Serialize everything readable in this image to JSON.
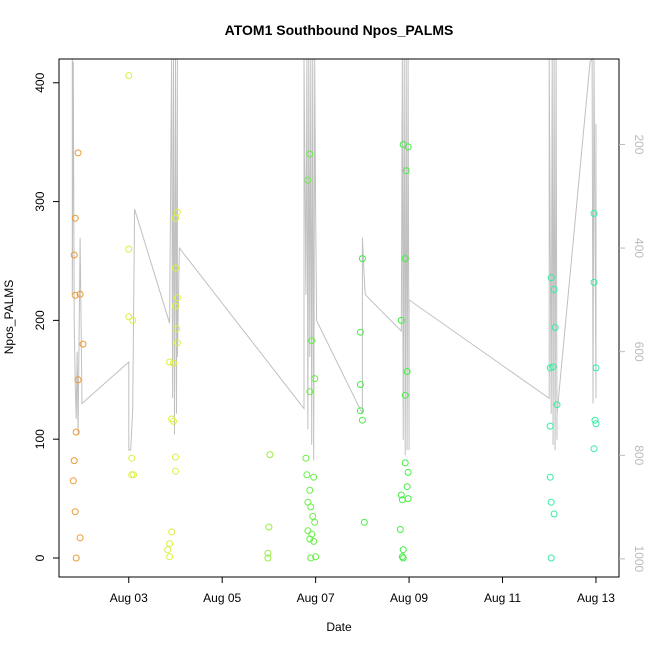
{
  "chart_data": {
    "type": "scatter",
    "title": "ATOM1 Southbound Npos_PALMS",
    "xlabel": "Date",
    "ylabel": "Npos_PALMS",
    "x_ticks": [
      "Aug 03",
      "Aug 05",
      "Aug 07",
      "Aug 09",
      "Aug 11",
      "Aug 13"
    ],
    "x_tick_dates": [
      "2023-08-03",
      "2023-08-05",
      "2023-08-07",
      "2023-08-09",
      "2023-08-11",
      "2023-08-13"
    ],
    "xlim": [
      "2023-08-01 12:10",
      "2023-08-13 11:50"
    ],
    "y_ticks": [
      0,
      100,
      200,
      300,
      400
    ],
    "ylim": [
      -16,
      420
    ],
    "y2_ticks": [
      200,
      400,
      600,
      800,
      1000
    ],
    "y2lim": [
      1035,
      35
    ],
    "y2_reversed": true,
    "grid": false,
    "legend": "none",
    "colors": {
      "axis": "#000000",
      "secondary_axis": "#bbbbbb",
      "track_line": "#c0c0c0"
    },
    "series": [
      {
        "color": "#ee9933",
        "points": [
          {
            "x": "2023-08-01 22:00",
            "y": 341
          },
          {
            "x": "2023-08-01 20:30",
            "y": 286
          },
          {
            "x": "2023-08-01 20:00",
            "y": 255
          },
          {
            "x": "2023-08-01 20:30",
            "y": 221
          },
          {
            "x": "2023-08-01 23:00",
            "y": 222
          },
          {
            "x": "2023-08-02 00:30",
            "y": 180
          },
          {
            "x": "2023-08-01 22:00",
            "y": 150
          },
          {
            "x": "2023-08-01 21:00",
            "y": 106
          },
          {
            "x": "2023-08-01 20:00",
            "y": 82
          },
          {
            "x": "2023-08-01 19:30",
            "y": 65
          },
          {
            "x": "2023-08-01 20:30",
            "y": 39
          },
          {
            "x": "2023-08-01 23:00",
            "y": 17
          },
          {
            "x": "2023-08-01 21:00",
            "y": 0
          }
        ]
      },
      {
        "color": "#ddee44",
        "points": [
          {
            "x": "2023-08-03 00:00",
            "y": 406
          },
          {
            "x": "2023-08-03 00:00",
            "y": 260
          },
          {
            "x": "2023-08-03 00:00",
            "y": 203
          },
          {
            "x": "2023-08-03 02:00",
            "y": 200
          },
          {
            "x": "2023-08-03 01:30",
            "y": 84
          },
          {
            "x": "2023-08-03 01:30",
            "y": 70
          },
          {
            "x": "2023-08-03 02:30",
            "y": 70
          },
          {
            "x": "2023-08-03 21:00",
            "y": 165
          },
          {
            "x": "2023-08-03 22:00",
            "y": 117
          },
          {
            "x": "2023-08-03 23:00",
            "y": 115
          },
          {
            "x": "2023-08-03 20:00",
            "y": 7
          },
          {
            "x": "2023-08-03 21:00",
            "y": 12
          },
          {
            "x": "2023-08-03 21:00",
            "y": 1
          },
          {
            "x": "2023-08-03 22:00",
            "y": 22
          },
          {
            "x": "2023-08-04 00:00",
            "y": 85
          },
          {
            "x": "2023-08-04 00:00",
            "y": 73
          },
          {
            "x": "2023-08-04 00:00",
            "y": 286
          },
          {
            "x": "2023-08-04 01:00",
            "y": 291
          },
          {
            "x": "2023-08-04 00:00",
            "y": 244
          },
          {
            "x": "2023-08-04 01:00",
            "y": 219
          },
          {
            "x": "2023-08-04 00:00",
            "y": 212
          },
          {
            "x": "2023-08-04 00:30",
            "y": 193
          },
          {
            "x": "2023-08-04 01:00",
            "y": 181
          },
          {
            "x": "2023-08-03 23:00",
            "y": 164
          }
        ]
      },
      {
        "color": "#99ee44",
        "points": [
          {
            "x": "2023-08-06 00:30",
            "y": 87
          },
          {
            "x": "2023-08-06 00:00",
            "y": 26
          },
          {
            "x": "2023-08-05 23:30",
            "y": 4
          },
          {
            "x": "2023-08-05 23:30",
            "y": 0
          }
        ]
      },
      {
        "color": "#66ee44",
        "points": [
          {
            "x": "2023-08-06 20:00",
            "y": 318
          },
          {
            "x": "2023-08-06 21:00",
            "y": 340
          },
          {
            "x": "2023-08-06 22:00",
            "y": 183
          },
          {
            "x": "2023-08-06 23:30",
            "y": 151
          },
          {
            "x": "2023-08-06 21:00",
            "y": 140
          },
          {
            "x": "2023-08-06 19:00",
            "y": 84
          },
          {
            "x": "2023-08-06 19:30",
            "y": 70
          },
          {
            "x": "2023-08-06 23:00",
            "y": 68
          },
          {
            "x": "2023-08-06 21:00",
            "y": 57
          },
          {
            "x": "2023-08-06 20:00",
            "y": 47
          },
          {
            "x": "2023-08-06 21:30",
            "y": 43
          },
          {
            "x": "2023-08-06 22:30",
            "y": 35
          },
          {
            "x": "2023-08-06 23:30",
            "y": 30
          },
          {
            "x": "2023-08-06 20:00",
            "y": 23
          },
          {
            "x": "2023-08-06 22:00",
            "y": 20
          },
          {
            "x": "2023-08-06 21:00",
            "y": 16
          },
          {
            "x": "2023-08-06 23:00",
            "y": 14
          },
          {
            "x": "2023-08-06 21:30",
            "y": 0
          },
          {
            "x": "2023-08-07 00:00",
            "y": 1
          }
        ]
      },
      {
        "color": "#44ee44",
        "points": [
          {
            "x": "2023-08-08 00:00",
            "y": 252
          },
          {
            "x": "2023-08-07 23:00",
            "y": 190
          },
          {
            "x": "2023-08-07 23:00",
            "y": 146
          },
          {
            "x": "2023-08-07 23:00",
            "y": 124
          },
          {
            "x": "2023-08-08 00:00",
            "y": 116
          },
          {
            "x": "2023-08-08 01:00",
            "y": 30
          },
          {
            "x": "2023-08-08 21:00",
            "y": 348
          },
          {
            "x": "2023-08-08 23:30",
            "y": 346
          },
          {
            "x": "2023-08-08 22:30",
            "y": 326
          },
          {
            "x": "2023-08-08 22:00",
            "y": 252
          },
          {
            "x": "2023-08-08 20:00",
            "y": 200
          },
          {
            "x": "2023-08-08 23:00",
            "y": 157
          },
          {
            "x": "2023-08-08 22:00",
            "y": 137
          },
          {
            "x": "2023-08-08 22:00",
            "y": 80
          },
          {
            "x": "2023-08-08 23:30",
            "y": 72
          },
          {
            "x": "2023-08-08 23:00",
            "y": 60
          },
          {
            "x": "2023-08-08 20:00",
            "y": 53
          },
          {
            "x": "2023-08-08 20:30",
            "y": 49
          },
          {
            "x": "2023-08-08 23:30",
            "y": 50
          },
          {
            "x": "2023-08-08 19:30",
            "y": 24
          },
          {
            "x": "2023-08-08 21:00",
            "y": 7
          },
          {
            "x": "2023-08-08 20:30",
            "y": 1
          },
          {
            "x": "2023-08-08 21:00",
            "y": 0
          }
        ]
      },
      {
        "color": "#33eea0",
        "points": [
          {
            "x": "2023-08-12 01:00",
            "y": 236
          },
          {
            "x": "2023-08-12 02:30",
            "y": 226
          },
          {
            "x": "2023-08-12 03:00",
            "y": 194
          },
          {
            "x": "2023-08-12 02:00",
            "y": 161
          },
          {
            "x": "2023-08-12 00:30",
            "y": 160
          },
          {
            "x": "2023-08-12 04:00",
            "y": 129
          },
          {
            "x": "2023-08-12 00:30",
            "y": 111
          },
          {
            "x": "2023-08-12 00:30",
            "y": 68
          },
          {
            "x": "2023-08-12 01:00",
            "y": 47
          },
          {
            "x": "2023-08-12 02:30",
            "y": 37
          },
          {
            "x": "2023-08-12 01:00",
            "y": 0
          },
          {
            "x": "2023-08-12 23:00",
            "y": 290
          },
          {
            "x": "2023-08-12 23:00",
            "y": 232
          },
          {
            "x": "2023-08-13 00:00",
            "y": 160
          },
          {
            "x": "2023-08-12 23:30",
            "y": 116
          },
          {
            "x": "2023-08-13 00:00",
            "y": 113
          },
          {
            "x": "2023-08-12 23:00",
            "y": 92
          }
        ]
      }
    ],
    "secondary_line": {
      "ylabel": "",
      "points": [
        {
          "x": "2023-08-01 19:00",
          "y": 35
        },
        {
          "x": "2023-08-01 19:00",
          "y": 490
        },
        {
          "x": "2023-08-01 19:30",
          "y": 40
        },
        {
          "x": "2023-08-01 20:00",
          "y": 540
        },
        {
          "x": "2023-08-01 20:30",
          "y": 660
        },
        {
          "x": "2023-08-01 21:00",
          "y": 730
        },
        {
          "x": "2023-08-01 21:30",
          "y": 600
        },
        {
          "x": "2023-08-01 22:00",
          "y": 760
        },
        {
          "x": "2023-08-01 23:00",
          "y": 380
        },
        {
          "x": "2023-08-02 00:00",
          "y": 700
        },
        {
          "x": "2023-08-03 00:00",
          "y": 620
        },
        {
          "x": "2023-08-03 00:00",
          "y": 790
        },
        {
          "x": "2023-08-03 01:00",
          "y": 790
        },
        {
          "x": "2023-08-03 02:00",
          "y": 710
        },
        {
          "x": "2023-08-03 03:00",
          "y": 325
        },
        {
          "x": "2023-08-03 21:00",
          "y": 545
        },
        {
          "x": "2023-08-03 22:00",
          "y": 35
        },
        {
          "x": "2023-08-03 22:30",
          "y": 690
        },
        {
          "x": "2023-08-03 23:00",
          "y": 35
        },
        {
          "x": "2023-08-03 23:30",
          "y": 760
        },
        {
          "x": "2023-08-04 00:00",
          "y": 35
        },
        {
          "x": "2023-08-04 00:30",
          "y": 720
        },
        {
          "x": "2023-08-04 01:00",
          "y": 35
        },
        {
          "x": "2023-08-04 01:00",
          "y": 610
        },
        {
          "x": "2023-08-04 02:00",
          "y": 400
        },
        {
          "x": "2023-08-06 18:00",
          "y": 710
        },
        {
          "x": "2023-08-06 18:00",
          "y": 35
        },
        {
          "x": "2023-08-06 19:00",
          "y": 490
        },
        {
          "x": "2023-08-06 19:30",
          "y": 35
        },
        {
          "x": "2023-08-06 20:00",
          "y": 750
        },
        {
          "x": "2023-08-06 20:30",
          "y": 35
        },
        {
          "x": "2023-08-06 21:00",
          "y": 610
        },
        {
          "x": "2023-08-06 21:30",
          "y": 35
        },
        {
          "x": "2023-08-06 22:00",
          "y": 780
        },
        {
          "x": "2023-08-06 22:30",
          "y": 35
        },
        {
          "x": "2023-08-06 23:00",
          "y": 810
        },
        {
          "x": "2023-08-06 23:30",
          "y": 35
        },
        {
          "x": "2023-08-07 00:00",
          "y": 320
        },
        {
          "x": "2023-08-07 00:30",
          "y": 540
        },
        {
          "x": "2023-08-08 00:00",
          "y": 720
        },
        {
          "x": "2023-08-08 00:00",
          "y": 380
        },
        {
          "x": "2023-08-08 01:00",
          "y": 460
        },
        {
          "x": "2023-08-08 01:30",
          "y": 490
        },
        {
          "x": "2023-08-08 20:00",
          "y": 560
        },
        {
          "x": "2023-08-08 20:30",
          "y": 35
        },
        {
          "x": "2023-08-08 21:00",
          "y": 770
        },
        {
          "x": "2023-08-08 21:30",
          "y": 35
        },
        {
          "x": "2023-08-08 22:00",
          "y": 800
        },
        {
          "x": "2023-08-08 22:30",
          "y": 35
        },
        {
          "x": "2023-08-08 23:00",
          "y": 790
        },
        {
          "x": "2023-08-08 23:30",
          "y": 35
        },
        {
          "x": "2023-08-09 00:00",
          "y": 790
        },
        {
          "x": "2023-08-09 00:00",
          "y": 500
        },
        {
          "x": "2023-08-12 00:00",
          "y": 690
        },
        {
          "x": "2023-08-12 00:00",
          "y": 35
        },
        {
          "x": "2023-08-12 01:00",
          "y": 720
        },
        {
          "x": "2023-08-12 01:30",
          "y": 35
        },
        {
          "x": "2023-08-12 02:00",
          "y": 780
        },
        {
          "x": "2023-08-12 02:30",
          "y": 35
        },
        {
          "x": "2023-08-12 03:00",
          "y": 790
        },
        {
          "x": "2023-08-12 03:30",
          "y": 35
        },
        {
          "x": "2023-08-12 04:00",
          "y": 770
        },
        {
          "x": "2023-08-12 04:00",
          "y": 720
        },
        {
          "x": "2023-08-12 21:00",
          "y": 40
        },
        {
          "x": "2023-08-12 22:00",
          "y": 35
        },
        {
          "x": "2023-08-12 22:30",
          "y": 700
        },
        {
          "x": "2023-08-12 23:00",
          "y": 35
        },
        {
          "x": "2023-08-13 00:00",
          "y": 690
        },
        {
          "x": "2023-08-13 00:00",
          "y": 160
        }
      ]
    }
  }
}
